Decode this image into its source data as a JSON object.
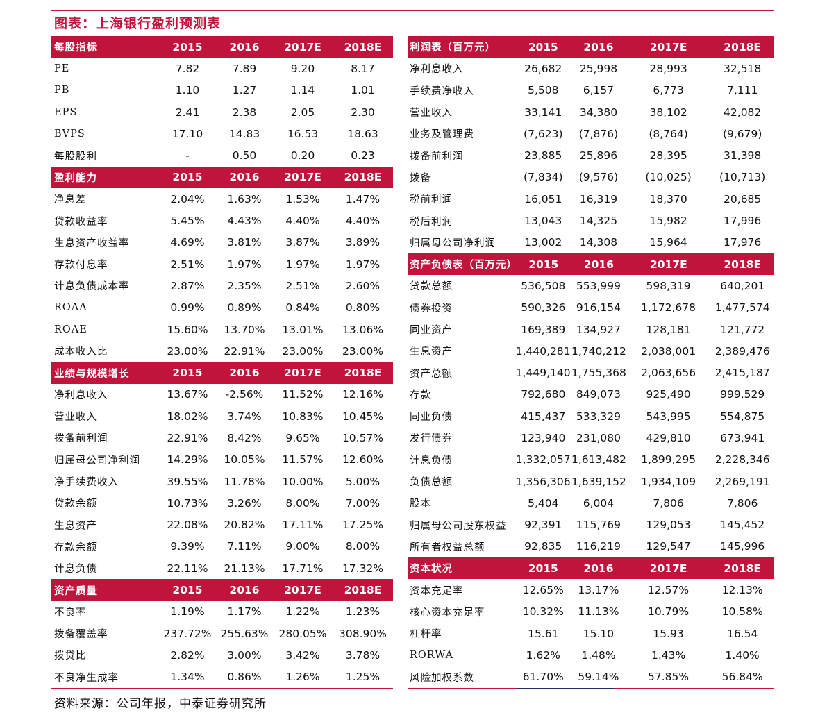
{
  "title": "图表：上海银行盈利预测表",
  "source": "资料来源：公司年报，中泰证券研究所",
  "years": [
    "2015",
    "2016",
    "2017E",
    "2018E"
  ],
  "left_sections": [
    {
      "header": "每股指标",
      "rows": [
        {
          "label": "PE",
          "values": [
            "7.82",
            "7.89",
            "9.20",
            "8.17"
          ]
        },
        {
          "label": "PB",
          "values": [
            "1.10",
            "1.27",
            "1.14",
            "1.01"
          ]
        },
        {
          "label": "EPS",
          "values": [
            "2.41",
            "2.38",
            "2.05",
            "2.30"
          ]
        },
        {
          "label": "BVPS",
          "values": [
            "17.10",
            "14.83",
            "16.53",
            "18.63"
          ]
        },
        {
          "label": "每股股利",
          "values": [
            "-",
            "0.50",
            "0.20",
            "0.23"
          ]
        }
      ]
    },
    {
      "header": "盈利能力",
      "rows": [
        {
          "label": "净息差",
          "values": [
            "2.04%",
            "1.63%",
            "1.53%",
            "1.47%"
          ]
        },
        {
          "label": "贷款收益率",
          "values": [
            "5.45%",
            "4.43%",
            "4.40%",
            "4.40%"
          ]
        },
        {
          "label": "生息资产收益率",
          "values": [
            "4.69%",
            "3.81%",
            "3.87%",
            "3.89%"
          ]
        },
        {
          "label": "存款付息率",
          "values": [
            "2.51%",
            "1.97%",
            "1.97%",
            "1.97%"
          ]
        },
        {
          "label": "计息负债成本率",
          "values": [
            "2.87%",
            "2.35%",
            "2.51%",
            "2.60%"
          ]
        },
        {
          "label": "ROAA",
          "values": [
            "0.99%",
            "0.89%",
            "0.84%",
            "0.80%"
          ]
        },
        {
          "label": "ROAE",
          "values": [
            "15.60%",
            "13.70%",
            "13.01%",
            "13.06%"
          ]
        },
        {
          "label": "成本收入比",
          "values": [
            "23.00%",
            "22.91%",
            "23.00%",
            "23.00%"
          ]
        }
      ]
    },
    {
      "header": "业绩与规模增长",
      "rows": [
        {
          "label": "净利息收入",
          "values": [
            "13.67%",
            "-2.56%",
            "11.52%",
            "12.16%"
          ]
        },
        {
          "label": "营业收入",
          "values": [
            "18.02%",
            "3.74%",
            "10.83%",
            "10.45%"
          ]
        },
        {
          "label": "拨备前利润",
          "values": [
            "22.91%",
            "8.42%",
            "9.65%",
            "10.57%"
          ]
        },
        {
          "label": "归属母公司净利润",
          "values": [
            "14.29%",
            "10.05%",
            "11.57%",
            "12.60%"
          ]
        },
        {
          "label": "净手续费收入",
          "values": [
            "39.55%",
            "11.78%",
            "10.00%",
            "5.00%"
          ]
        },
        {
          "label": "贷款余额",
          "values": [
            "10.73%",
            "3.26%",
            "8.00%",
            "7.00%"
          ]
        },
        {
          "label": "生息资产",
          "values": [
            "22.08%",
            "20.82%",
            "17.11%",
            "17.25%"
          ]
        },
        {
          "label": "存款余额",
          "values": [
            "9.39%",
            "7.11%",
            "9.00%",
            "8.00%"
          ]
        },
        {
          "label": "计息负债",
          "values": [
            "22.11%",
            "21.13%",
            "17.71%",
            "17.32%"
          ]
        }
      ]
    },
    {
      "header": "资产质量",
      "rows": [
        {
          "label": "不良率",
          "values": [
            "1.19%",
            "1.17%",
            "1.22%",
            "1.23%"
          ]
        },
        {
          "label": "拨备覆盖率",
          "values": [
            "237.72%",
            "255.63%",
            "280.05%",
            "308.90%"
          ]
        },
        {
          "label": "拨贷比",
          "values": [
            "2.82%",
            "3.00%",
            "3.42%",
            "3.78%"
          ]
        },
        {
          "label": "不良净生成率",
          "values": [
            "1.34%",
            "0.86%",
            "1.26%",
            "1.25%"
          ]
        }
      ]
    }
  ],
  "right_sections": [
    {
      "header": "利润表（百万元）",
      "rows": [
        {
          "label": "净利息收入",
          "values": [
            "26,682",
            "25,998",
            "28,993",
            "32,518"
          ]
        },
        {
          "label": "手续费净收入",
          "values": [
            "5,508",
            "6,157",
            "6,773",
            "7,111"
          ]
        },
        {
          "label": "营业收入",
          "values": [
            "33,141",
            "34,380",
            "38,102",
            "42,082"
          ]
        },
        {
          "label": "业务及管理费",
          "values": [
            "(7,623)",
            "(7,876)",
            "(8,764)",
            "(9,679)"
          ]
        },
        {
          "label": "拨备前利润",
          "values": [
            "23,885",
            "25,896",
            "28,395",
            "31,398"
          ]
        },
        {
          "label": "拨备",
          "values": [
            "(7,834)",
            "(9,576)",
            "(10,025)",
            "(10,713)"
          ]
        },
        {
          "label": "税前利润",
          "values": [
            "16,051",
            "16,319",
            "18,370",
            "20,685"
          ]
        },
        {
          "label": "税后利润",
          "values": [
            "13,043",
            "14,325",
            "15,982",
            "17,996"
          ]
        },
        {
          "label": "归属母公司净利润",
          "values": [
            "13,002",
            "14,308",
            "15,964",
            "17,976"
          ]
        }
      ]
    },
    {
      "header": "资产负债表（百万元）",
      "rows": [
        {
          "label": "贷款总额",
          "values": [
            "536,508",
            "553,999",
            "598,319",
            "640,201"
          ]
        },
        {
          "label": "债券投资",
          "values": [
            "590,326",
            "916,154",
            "1,172,678",
            "1,477,574"
          ]
        },
        {
          "label": "同业资产",
          "values": [
            "169,389",
            "134,927",
            "128,181",
            "121,772"
          ]
        },
        {
          "label": "生息资产",
          "values": [
            "1,440,281",
            "1,740,212",
            "2,038,001",
            "2,389,476"
          ]
        },
        {
          "label": "资产总额",
          "values": [
            "1,449,140",
            "1,755,368",
            "2,063,656",
            "2,415,187"
          ]
        },
        {
          "label": "存款",
          "values": [
            "792,680",
            "849,073",
            "925,490",
            "999,529"
          ]
        },
        {
          "label": "同业负债",
          "values": [
            "415,437",
            "533,329",
            "543,995",
            "554,875"
          ]
        },
        {
          "label": "发行债券",
          "values": [
            "123,940",
            "231,080",
            "429,810",
            "673,941"
          ]
        },
        {
          "label": "计息负债",
          "values": [
            "1,332,057",
            "1,613,482",
            "1,899,295",
            "2,228,346"
          ]
        },
        {
          "label": "负债总额",
          "values": [
            "1,356,306",
            "1,639,152",
            "1,934,109",
            "2,269,191"
          ]
        },
        {
          "label": "股本",
          "values": [
            "5,404",
            "6,004",
            "7,806",
            "7,806"
          ]
        },
        {
          "label": "归属母公司股东权益",
          "values": [
            "92,391",
            "115,769",
            "129,053",
            "145,452"
          ]
        },
        {
          "label": "所有者权益总额",
          "values": [
            "92,835",
            "116,219",
            "129,547",
            "145,996"
          ]
        }
      ]
    },
    {
      "header": "资本状况",
      "rows": [
        {
          "label": "资本充足率",
          "values": [
            "12.65%",
            "13.17%",
            "12.57%",
            "12.13%"
          ]
        },
        {
          "label": "核心资本充足率",
          "values": [
            "10.32%",
            "11.13%",
            "10.79%",
            "10.58%"
          ]
        },
        {
          "label": "杠杆率",
          "values": [
            "15.61",
            "15.10",
            "15.93",
            "16.54"
          ]
        },
        {
          "label": "RORWA",
          "values": [
            "1.62%",
            "1.48%",
            "1.43%",
            "1.40%"
          ]
        },
        {
          "label": "风险加权系数",
          "values": [
            "61.70%",
            "59.14%",
            "57.85%",
            "56.84%"
          ]
        }
      ]
    }
  ],
  "colors": {
    "accent": "#c0143c",
    "navy": "#1f2d6b",
    "header_text": "#ffffff"
  }
}
